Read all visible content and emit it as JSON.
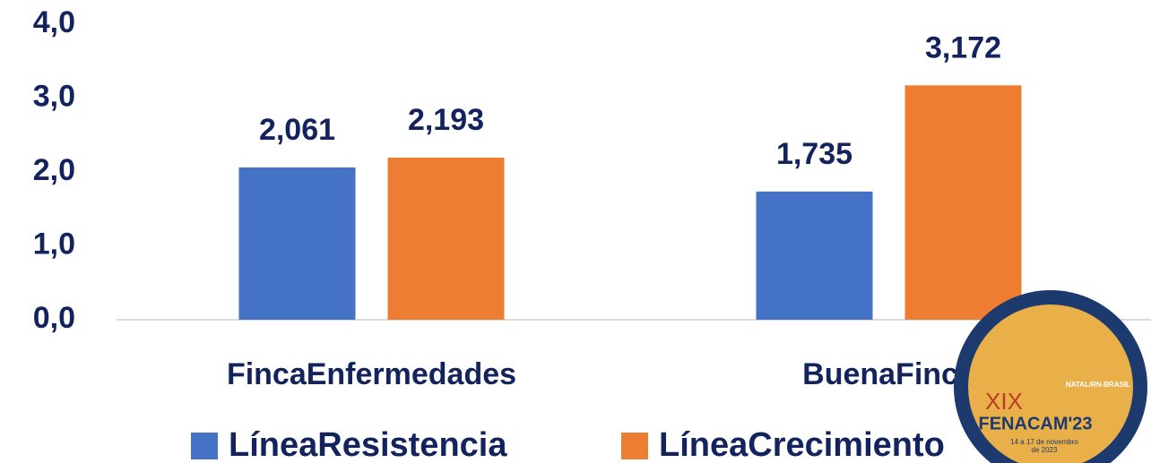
{
  "chart_data": {
    "type": "bar",
    "categories": [
      "FincaEnfermedades",
      "BuenaFinca"
    ],
    "series": [
      {
        "name": "LíneaResistencia",
        "color": "#4472c4",
        "values": [
          2.061,
          1.735
        ],
        "value_labels": [
          "2,061",
          "1,735"
        ]
      },
      {
        "name": "LíneaCrecimiento",
        "color": "#ed7d31",
        "values": [
          2.193,
          3.172
        ],
        "value_labels": [
          "2,193",
          "3,172"
        ]
      }
    ],
    "ylim": [
      0,
      4
    ],
    "yticks": [
      {
        "value": 0,
        "label": "0,0"
      },
      {
        "value": 1,
        "label": "1,0"
      },
      {
        "value": 2,
        "label": "2,0"
      },
      {
        "value": 3,
        "label": "3,0"
      },
      {
        "value": 4,
        "label": "4,0"
      }
    ],
    "grid": false,
    "legend": "bottom"
  },
  "logo": {
    "edition": "XIX",
    "name": "FENACAM'23",
    "place": "NATAL/RN-BRASIL",
    "dates": "14 a 17 de novembro",
    "year": "de 2023"
  }
}
